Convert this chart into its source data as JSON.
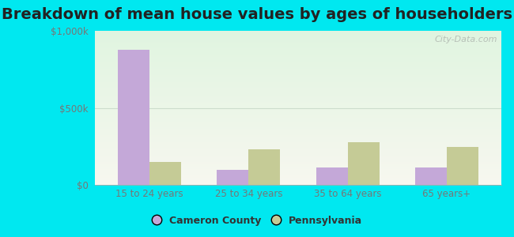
{
  "title": "Breakdown of mean house values by ages of householders",
  "categories": [
    "15 to 24 years",
    "25 to 34 years",
    "35 to 64 years",
    "65 years+"
  ],
  "cameron_values": [
    875000,
    100000,
    115000,
    115000
  ],
  "pennsylvania_values": [
    150000,
    230000,
    275000,
    245000
  ],
  "cameron_color": "#c4a8d8",
  "pennsylvania_color": "#c5cb96",
  "ylim": [
    0,
    1000000
  ],
  "yticks": [
    0,
    500000,
    1000000
  ],
  "ytick_labels": [
    "$0",
    "$500k",
    "$1,000k"
  ],
  "background_outer": "#00e8f0",
  "title_fontsize": 14,
  "legend_labels": [
    "Cameron County",
    "Pennsylvania"
  ],
  "bar_width": 0.32,
  "watermark": "City-Data.com",
  "gridline_color": "#ccddcc",
  "tick_color": "#777777",
  "title_color": "#222222"
}
